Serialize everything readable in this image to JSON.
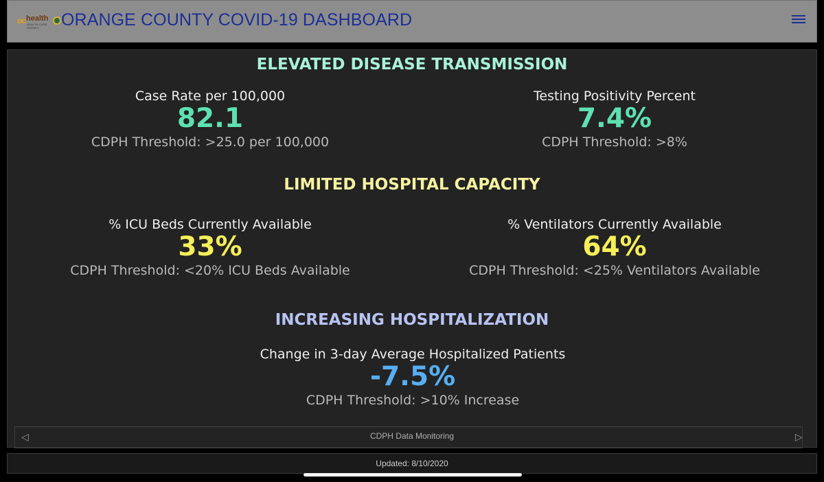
{
  "header": {
    "logo": {
      "oc": "oc",
      "health": "health",
      "sub": "HEALTH CARE AGENCY"
    },
    "title": "ORANGE COUNTY COVID-19 DASHBOARD",
    "menu_icon": "hamburger-menu-icon"
  },
  "colors": {
    "transmission": "#a8f2d8",
    "hospital_capacity": "#f7f2a0",
    "hospitalization": "#b7c3f2",
    "value_green": "#5fe0b2",
    "value_yellow": "#f5ef5a",
    "value_blue": "#57aef2"
  },
  "sections": [
    {
      "title": "ELEVATED DISEASE TRANSMISSION",
      "metrics": [
        {
          "label": "Case Rate per 100,000",
          "value": "82.1",
          "threshold": "CDPH Threshold: >25.0 per 100,000"
        },
        {
          "label": "Testing Positivity Percent",
          "value": "7.4%",
          "threshold": "CDPH Threshold: >8%"
        }
      ]
    },
    {
      "title": "LIMITED HOSPITAL CAPACITY",
      "metrics": [
        {
          "label": "% ICU Beds Currently Available",
          "value": "33%",
          "threshold": "CDPH Threshold: <20% ICU Beds Available"
        },
        {
          "label": "% Ventilators Currently Available",
          "value": "64%",
          "threshold": "CDPH Threshold: <25% Ventilators Available"
        }
      ]
    },
    {
      "title": "INCREASING HOSPITALIZATION",
      "metrics": [
        {
          "label": "Change in 3-day Average Hospitalized Patients",
          "value": "-7.5%",
          "threshold": "CDPH Threshold: >10% Increase"
        }
      ]
    }
  ],
  "panel_footer": {
    "label": "CDPH Data Monitoring",
    "prev_icon": "triangle-left-icon",
    "next_icon": "triangle-right-icon"
  },
  "updated": "Updated: 8/10/2020"
}
